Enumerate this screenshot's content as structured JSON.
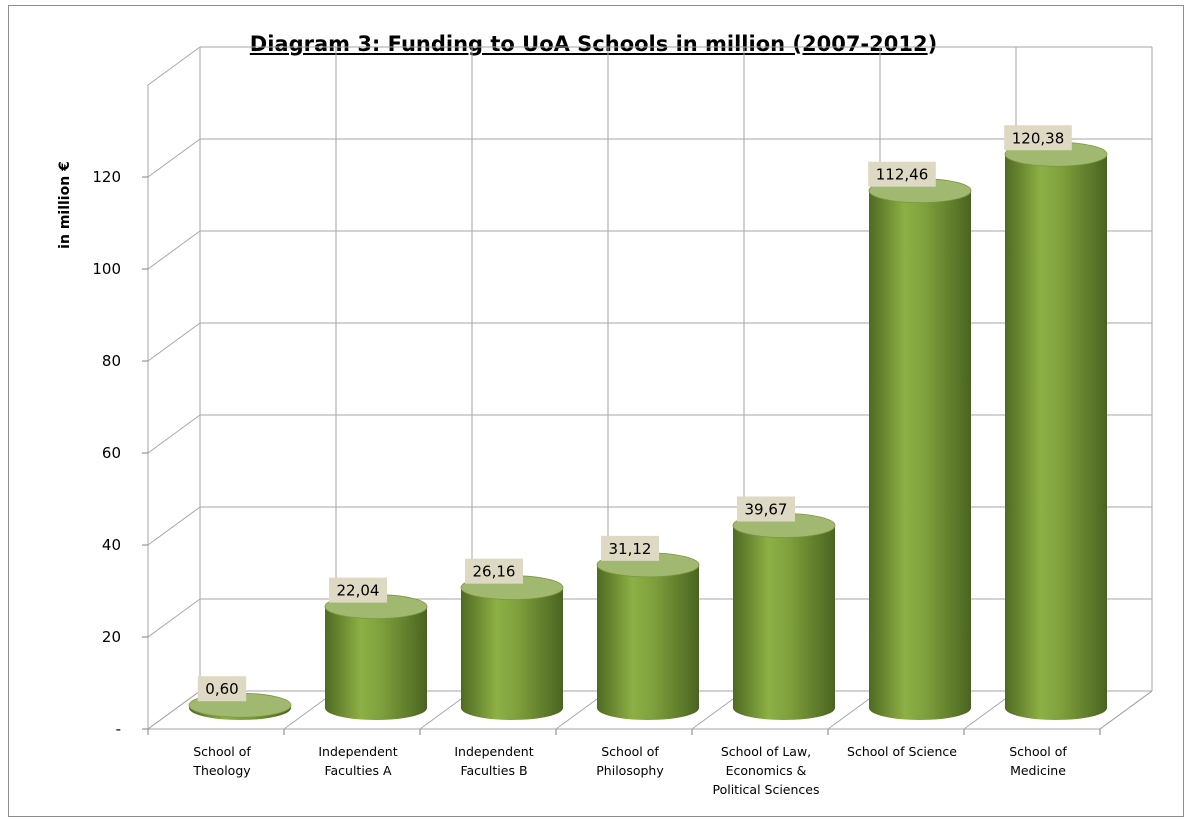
{
  "chart_data": {
    "type": "bar",
    "title_main": "Diagram 3: Funding to UoA Schools in million (2007-2012",
    "title_tail": ")",
    "ylabel": "in million €",
    "ylim": [
      0,
      140
    ],
    "yticks": [
      {
        "value": 0,
        "label": "-"
      },
      {
        "value": 20,
        "label": "20"
      },
      {
        "value": 40,
        "label": "40"
      },
      {
        "value": 60,
        "label": "60"
      },
      {
        "value": 80,
        "label": "80"
      },
      {
        "value": 100,
        "label": "100"
      },
      {
        "value": 120,
        "label": "120"
      }
    ],
    "categories": [
      [
        "School of",
        "Theology"
      ],
      [
        "Independent",
        "Faculties A"
      ],
      [
        "Independent",
        "Faculties B"
      ],
      [
        "School of",
        "Philosophy"
      ],
      [
        "School of Law,",
        "Economics &",
        "Political Sciences"
      ],
      [
        "School of Science"
      ],
      [
        "School of",
        "Medicine"
      ]
    ],
    "values": [
      0.6,
      22.04,
      26.16,
      31.12,
      39.67,
      112.46,
      120.38
    ],
    "value_labels": [
      "0,60",
      "22,04",
      "26,16",
      "31,12",
      "39,67",
      "112,46",
      "120,38"
    ],
    "grid": true,
    "colors": {
      "bar_light": "#8db045",
      "bar_mid": "#6f8f33",
      "bar_dark": "#4f6a22",
      "bar_top": "#a0b870",
      "label_bg": "#ddd9c3",
      "grid": "#a6a6a6"
    }
  }
}
